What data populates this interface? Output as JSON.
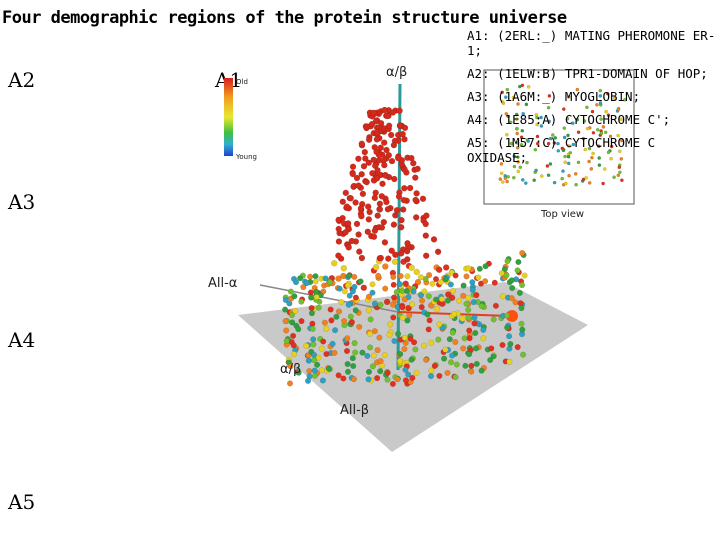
{
  "title": "Four demographic regions of the protein structure universe",
  "region_labels": [
    "A2",
    "A1",
    "A3",
    "A4",
    "A5"
  ],
  "annotations": [
    "A1: (2ERL:_) MATING PHEROMONE ER-1;",
    "A2: (1ELW:B) TPR1-DOMAIN OF HOP;",
    "A3: (1A6M:_) MYOGLOBIN;",
    "A4: (1E85:A) CYTOCHROME C';",
    "A5: (1M57:C) CYTOCHROME C OXIDASE;"
  ],
  "figure": {
    "axis_top": "α/β",
    "axis_left": "All-α",
    "axis_front": "α/β",
    "axis_bottom": "All-β",
    "colorbar_top": "Old",
    "colorbar_bottom": "Young",
    "inset_caption": "Top view"
  },
  "colors": {
    "cloud_red": "#d42a1c",
    "pole": "#2a9a9a",
    "plane": "#c8c8c8"
  }
}
